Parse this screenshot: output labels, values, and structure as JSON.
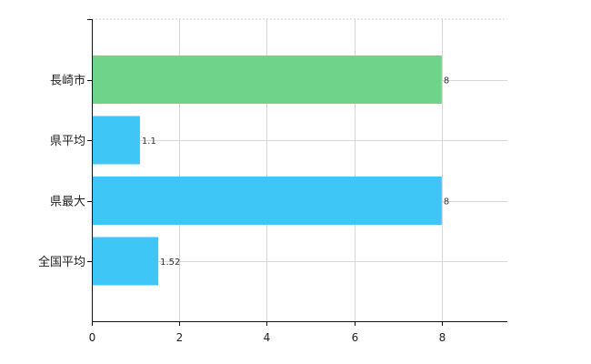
{
  "chart_data": {
    "type": "bar",
    "orientation": "horizontal",
    "categories": [
      "長崎市",
      "県平均",
      "県最大",
      "全国平均"
    ],
    "values": [
      8,
      1.1,
      8,
      1.52
    ],
    "value_labels": [
      "8",
      "1.1",
      "8",
      "1.52"
    ],
    "bar_colors": [
      "#6fd48a",
      "#3ec6f7",
      "#3ec6f7",
      "#3ec6f7"
    ],
    "xlim": [
      0,
      9.5
    ],
    "x_ticks": [
      0,
      2,
      4,
      6,
      8
    ],
    "grid": true,
    "title": "",
    "xlabel": "",
    "ylabel": ""
  }
}
